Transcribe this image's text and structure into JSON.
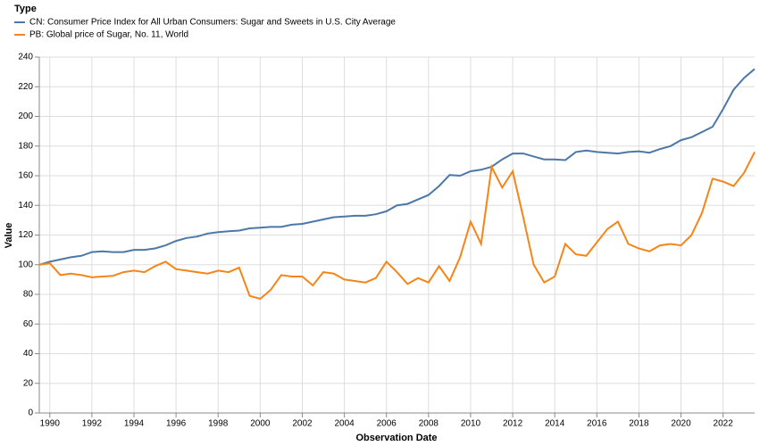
{
  "chart_data": {
    "type": "line",
    "legend_title": "Type",
    "x_label": "Observation Date",
    "y_label": "Value",
    "x": [
      1989.5,
      1990,
      1990.5,
      1991,
      1991.5,
      1992,
      1992.5,
      1993,
      1993.5,
      1994,
      1994.5,
      1995,
      1995.5,
      1996,
      1996.5,
      1997,
      1997.5,
      1998,
      1998.5,
      1999,
      1999.5,
      2000,
      2000.5,
      2001,
      2001.5,
      2002,
      2002.5,
      2003,
      2003.5,
      2004,
      2004.5,
      2005,
      2005.5,
      2006,
      2006.5,
      2007,
      2007.5,
      2008,
      2008.5,
      2009,
      2009.5,
      2010,
      2010.5,
      2011,
      2011.5,
      2012,
      2012.5,
      2013,
      2013.5,
      2014,
      2014.5,
      2015,
      2015.5,
      2016,
      2016.5,
      2017,
      2017.5,
      2018,
      2018.5,
      2019,
      2019.5,
      2020,
      2020.5,
      2021,
      2021.5,
      2022,
      2022.5,
      2023,
      2023.5
    ],
    "series": [
      {
        "name": "CN: Consumer Price Index for All Urban Consumers: Sugar and Sweets in U.S. City Average",
        "color": "#4c78a8",
        "values": [
          100,
          102,
          103.5,
          105,
          106,
          108.5,
          109,
          108.5,
          108.5,
          110,
          110,
          111,
          113,
          116,
          118,
          119,
          121,
          122,
          122.5,
          123,
          124.5,
          125,
          125.5,
          125.5,
          127,
          127.5,
          129,
          130.5,
          132,
          132.5,
          133,
          133,
          134,
          136,
          140,
          141,
          144,
          147,
          153,
          160.5,
          160,
          163,
          164,
          166,
          171,
          175,
          175,
          173,
          171,
          171,
          170.5,
          176,
          177,
          176,
          175.5,
          175,
          176,
          176.5,
          175.5,
          178,
          180,
          184,
          186,
          189.5,
          193,
          205,
          218,
          226,
          232
        ]
      },
      {
        "name": "PB: Global price of Sugar, No. 11, World",
        "color": "#f58518",
        "values": [
          100,
          101,
          93,
          94,
          93,
          91.5,
          92,
          92.5,
          95,
          96,
          95,
          99,
          102,
          97,
          96,
          95,
          94,
          96,
          95,
          98,
          79,
          77,
          83,
          93,
          92,
          92,
          86,
          95,
          94,
          90,
          89,
          88,
          91,
          102,
          95,
          87,
          91,
          88,
          99,
          89,
          105,
          129,
          114,
          166,
          152,
          163,
          132,
          100,
          88,
          92,
          114,
          107,
          106,
          115,
          124,
          129,
          114,
          111,
          109,
          113,
          114,
          113,
          120,
          135,
          158,
          156,
          153,
          162,
          176
        ]
      }
    ],
    "xlim": [
      1989.5,
      2023.5
    ],
    "xticks": [
      1990,
      1992,
      1994,
      1996,
      1998,
      2000,
      2002,
      2004,
      2006,
      2008,
      2010,
      2012,
      2014,
      2016,
      2018,
      2020,
      2022
    ],
    "ylim": [
      0,
      240
    ],
    "yticks": [
      0,
      20,
      40,
      60,
      80,
      100,
      120,
      140,
      160,
      180,
      200,
      220,
      240
    ],
    "grid": true
  }
}
